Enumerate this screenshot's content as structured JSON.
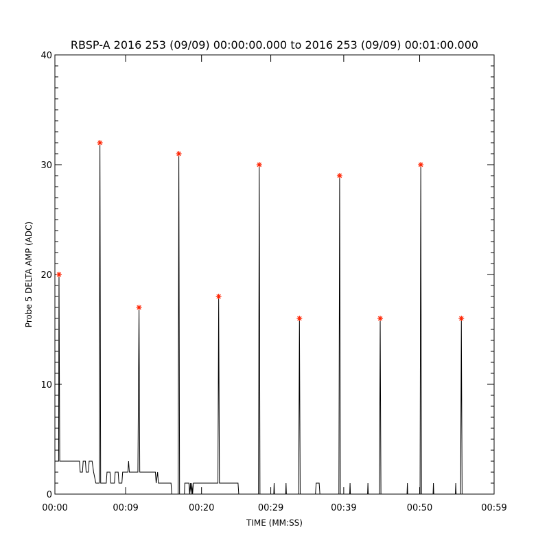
{
  "chart_data": {
    "type": "line",
    "title": "RBSP-A 2016 253 (09/09) 00:00:00.000 to 2016 253 (09/09) 00:01:00.000",
    "xlabel": "TIME (MM:SS)",
    "ylabel": "Probe 5 DELTA AMP (ADC)",
    "xlim": [
      0,
      59
    ],
    "ylim": [
      0,
      40
    ],
    "x_tick_labels": [
      "00:00",
      "00:09",
      "00:20",
      "00:29",
      "00:39",
      "00:50",
      "00:59"
    ],
    "x_tick_values": [
      0,
      9.5,
      19.7,
      29.0,
      38.8,
      49.0,
      59
    ],
    "y_ticks": [
      0,
      10,
      20,
      30,
      40
    ],
    "grid": false,
    "trace_color": "#000000",
    "marker_color": "#ff2200",
    "series": [
      {
        "values": [
          [
            0.0,
            3
          ],
          [
            0.5,
            3
          ],
          [
            0.55,
            20
          ],
          [
            0.65,
            3
          ],
          [
            3.3,
            3
          ],
          [
            3.4,
            2
          ],
          [
            3.7,
            2
          ],
          [
            3.8,
            3
          ],
          [
            4.1,
            3
          ],
          [
            4.2,
            2
          ],
          [
            4.5,
            2
          ],
          [
            4.6,
            3
          ],
          [
            5.0,
            3
          ],
          [
            5.2,
            2
          ],
          [
            5.5,
            1
          ],
          [
            5.95,
            1
          ],
          [
            6.05,
            32
          ],
          [
            6.15,
            1
          ],
          [
            6.9,
            1
          ],
          [
            7.0,
            2
          ],
          [
            7.4,
            2
          ],
          [
            7.5,
            1
          ],
          [
            8.0,
            1
          ],
          [
            8.1,
            2
          ],
          [
            8.5,
            2
          ],
          [
            8.6,
            1
          ],
          [
            9.0,
            1
          ],
          [
            9.1,
            2
          ],
          [
            9.8,
            2
          ],
          [
            9.9,
            3
          ],
          [
            10.0,
            2
          ],
          [
            11.15,
            2
          ],
          [
            11.3,
            17
          ],
          [
            11.4,
            2
          ],
          [
            13.5,
            2
          ],
          [
            13.6,
            1
          ],
          [
            13.8,
            2
          ],
          [
            13.9,
            1
          ],
          [
            14.5,
            1
          ],
          [
            15.6,
            1
          ],
          [
            15.7,
            0
          ],
          [
            16.0,
            0
          ],
          [
            16.55,
            0
          ],
          [
            16.65,
            31
          ],
          [
            16.75,
            0
          ],
          [
            17.4,
            0
          ],
          [
            17.45,
            1
          ],
          [
            18.0,
            1
          ],
          [
            18.1,
            0
          ],
          [
            18.2,
            1
          ],
          [
            18.3,
            0
          ],
          [
            18.4,
            1
          ],
          [
            18.5,
            0
          ],
          [
            18.6,
            1
          ],
          [
            21.9,
            1
          ],
          [
            22.0,
            18
          ],
          [
            22.1,
            1
          ],
          [
            24.6,
            1
          ],
          [
            24.7,
            0
          ],
          [
            27.35,
            0
          ],
          [
            27.45,
            30
          ],
          [
            27.55,
            0
          ],
          [
            29.4,
            0
          ],
          [
            29.45,
            1
          ],
          [
            29.5,
            0
          ],
          [
            31.0,
            0
          ],
          [
            31.05,
            1
          ],
          [
            31.1,
            0
          ],
          [
            32.75,
            0
          ],
          [
            32.85,
            16
          ],
          [
            32.95,
            0
          ],
          [
            35.0,
            0
          ],
          [
            35.1,
            1
          ],
          [
            35.5,
            1
          ],
          [
            35.6,
            0
          ],
          [
            38.15,
            0
          ],
          [
            38.25,
            29
          ],
          [
            38.35,
            0
          ],
          [
            39.6,
            0
          ],
          [
            39.65,
            1
          ],
          [
            39.7,
            0
          ],
          [
            42.0,
            0
          ],
          [
            42.05,
            1
          ],
          [
            42.1,
            0
          ],
          [
            43.6,
            0
          ],
          [
            43.7,
            16
          ],
          [
            43.8,
            0
          ],
          [
            47.3,
            0
          ],
          [
            47.35,
            1
          ],
          [
            47.4,
            0
          ],
          [
            49.05,
            0
          ],
          [
            49.15,
            30
          ],
          [
            49.25,
            0
          ],
          [
            50.8,
            0
          ],
          [
            50.85,
            1
          ],
          [
            50.9,
            0
          ],
          [
            53.8,
            0
          ],
          [
            53.85,
            1
          ],
          [
            53.9,
            0
          ],
          [
            54.5,
            0
          ],
          [
            54.6,
            16
          ],
          [
            54.7,
            0
          ],
          [
            59.0,
            0
          ]
        ],
        "peaks": [
          [
            0.55,
            20
          ],
          [
            6.05,
            32
          ],
          [
            11.3,
            17
          ],
          [
            16.65,
            31
          ],
          [
            22.0,
            18
          ],
          [
            27.45,
            30
          ],
          [
            32.85,
            16
          ],
          [
            38.25,
            29
          ],
          [
            43.7,
            16
          ],
          [
            49.15,
            30
          ],
          [
            54.6,
            16
          ]
        ]
      }
    ]
  }
}
